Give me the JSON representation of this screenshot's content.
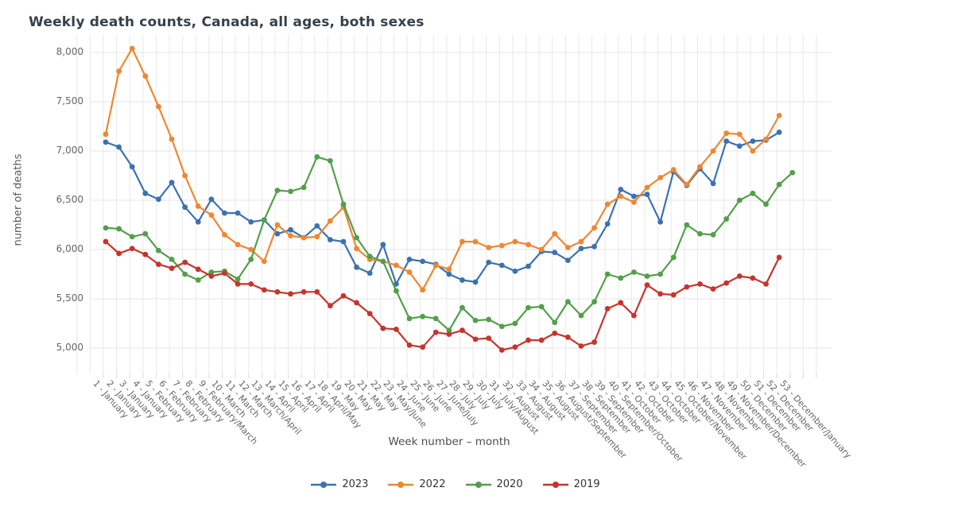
{
  "header": {
    "title": "Weekly death counts, Canada, all ages, both sexes"
  },
  "axes": {
    "y": {
      "title": "number of deaths",
      "tick_labels": [
        "5,000",
        "5,500",
        "6,000",
        "6,500",
        "7,000",
        "7,500",
        "8,000"
      ]
    },
    "x": {
      "title": "Week number – month"
    }
  },
  "chart_data": {
    "type": "line",
    "title": "Weekly death counts, Canada, all ages, both sexes",
    "xlabel": "Week number – month",
    "ylabel": "number of deaths",
    "ylim": [
      5000,
      8000
    ],
    "y_tick_step": 500,
    "grid": true,
    "legend_position": "bottom-center",
    "marker": "circle",
    "categories": [
      "1 - January",
      "2 - January",
      "3 - January",
      "4 - January",
      "5 - February",
      "6 - February",
      "7 - February",
      "8 - February",
      "9 - February/March",
      "10 - March",
      "11 - March",
      "12 - March",
      "13 - March/April",
      "14 - April",
      "15 - April",
      "16 - April",
      "17 - April",
      "18 - April/May",
      "19 - May",
      "20 - May",
      "21 - May",
      "22 - May",
      "23 - May/June",
      "24 - June",
      "25 - June",
      "26 - June",
      "27 - June/July",
      "28 - July",
      "29 - July",
      "30 - July",
      "31 - July/August",
      "32 - August",
      "33 - August",
      "34 - August",
      "35 - August",
      "36 - August/September",
      "37 - September",
      "38 - September",
      "39 - September",
      "40 - September/October",
      "41 - October",
      "42 - October",
      "43 - October",
      "44 - October",
      "45 - October/November",
      "46 - November",
      "47 - November",
      "48 - November",
      "49 - November/December",
      "50 - December",
      "51 - December",
      "52 - December",
      "53 - December/January"
    ],
    "series": [
      {
        "name": "2023",
        "color": "#3b72b1",
        "values": [
          7090,
          7040,
          6840,
          6570,
          6510,
          6680,
          6430,
          6280,
          6510,
          6370,
          6370,
          6280,
          6300,
          6160,
          6200,
          6120,
          6240,
          6100,
          6080,
          5820,
          5760,
          6050,
          5650,
          5900,
          5880,
          5850,
          5750,
          5690,
          5670,
          5870,
          5840,
          5780,
          5830,
          5980,
          5970,
          5890,
          6010,
          6030,
          6260,
          6610,
          6540,
          6560,
          6280,
          6790,
          6650,
          6820,
          6670,
          7100,
          7050,
          7100,
          7110,
          7190
        ]
      },
      {
        "name": "2022",
        "color": "#ef8733",
        "values": [
          7170,
          7810,
          8040,
          7760,
          7450,
          7120,
          6750,
          6440,
          6350,
          6150,
          6050,
          6000,
          5880,
          6250,
          6140,
          6120,
          6130,
          6290,
          6430,
          6010,
          5900,
          5880,
          5840,
          5770,
          5590,
          5840,
          5800,
          6080,
          6080,
          6020,
          6040,
          6080,
          6050,
          6000,
          6160,
          6020,
          6080,
          6220,
          6460,
          6540,
          6480,
          6630,
          6730,
          6810,
          6660,
          6840,
          7000,
          7180,
          7170,
          7000,
          7120,
          7360
        ]
      },
      {
        "name": "2020",
        "color": "#52a04a",
        "values": [
          6220,
          6210,
          6130,
          6160,
          5990,
          5900,
          5750,
          5690,
          5770,
          5780,
          5700,
          5900,
          6300,
          6600,
          6590,
          6630,
          6940,
          6900,
          6460,
          6120,
          5930,
          5880,
          5580,
          5300,
          5320,
          5300,
          5180,
          5410,
          5280,
          5290,
          5220,
          5250,
          5410,
          5420,
          5260,
          5470,
          5330,
          5470,
          5750,
          5710,
          5770,
          5730,
          5750,
          5920,
          6250,
          6160,
          6150,
          6310,
          6500,
          6570,
          6460,
          6660,
          6780
        ]
      },
      {
        "name": "2019",
        "color": "#c5352e",
        "values": [
          6080,
          5960,
          6010,
          5950,
          5850,
          5810,
          5870,
          5800,
          5730,
          5760,
          5650,
          5650,
          5590,
          5570,
          5550,
          5570,
          5570,
          5430,
          5530,
          5460,
          5350,
          5200,
          5190,
          5030,
          5010,
          5160,
          5140,
          5180,
          5090,
          5100,
          4980,
          5010,
          5080,
          5080,
          5150,
          5110,
          5020,
          5060,
          5400,
          5460,
          5330,
          5640,
          5550,
          5540,
          5620,
          5650,
          5600,
          5660,
          5730,
          5710,
          5650,
          5920
        ]
      }
    ]
  }
}
